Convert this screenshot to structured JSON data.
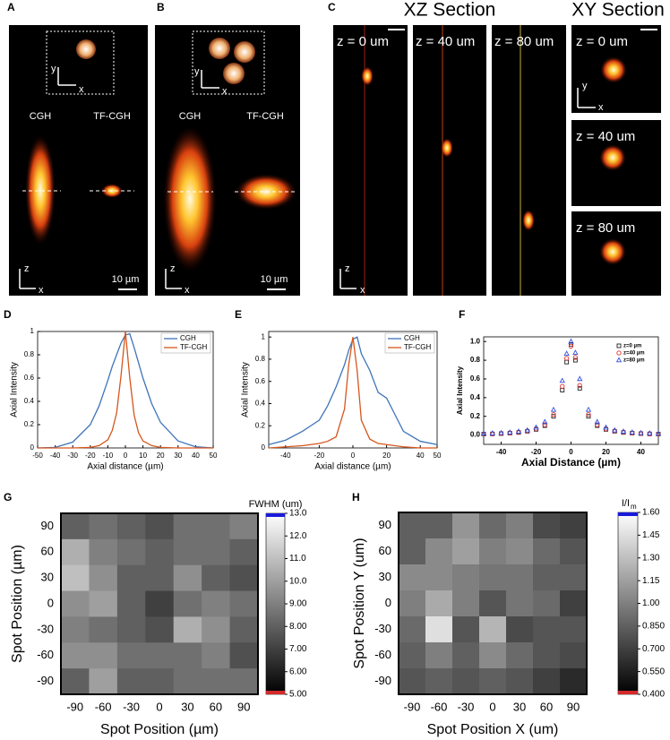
{
  "panels": {
    "A": {
      "label": "A",
      "left": "CGH",
      "right": "TF-CGH",
      "scale": "10 µm",
      "inset_axes": [
        "y",
        "x"
      ],
      "axes": [
        "z",
        "x"
      ]
    },
    "B": {
      "label": "B",
      "left": "CGH",
      "right": "TF-CGH",
      "scale": "10 µm",
      "inset_axes": [
        "y",
        "x"
      ],
      "axes": [
        "z",
        "x"
      ]
    },
    "C": {
      "label": "C",
      "xz_title": "XZ Section",
      "xy_title": "XY Section",
      "xz_labels": [
        "z = 0 um",
        "z = 40 um",
        "z = 80 um"
      ],
      "xy_labels": [
        "z = 0 um",
        "z = 40 um",
        "z = 80 um"
      ],
      "xz_axes": [
        "z",
        "x"
      ],
      "xy_axes": [
        "y",
        "x"
      ]
    }
  },
  "chart_data": [
    {
      "type": "line",
      "label": "D",
      "xlabel": "Axial distance (µm)",
      "ylabel": "Axial Intensity",
      "x": [
        -50,
        -40,
        -30,
        -20,
        -15,
        -10,
        -7.5,
        -5,
        -2.5,
        0,
        2.5,
        5,
        7.5,
        10,
        15,
        20,
        30,
        40,
        50
      ],
      "series": [
        {
          "name": "CGH",
          "color": "#3f74b8",
          "values": [
            0,
            0.005,
            0.05,
            0.2,
            0.36,
            0.58,
            0.7,
            0.8,
            0.9,
            0.97,
            0.98,
            0.86,
            0.73,
            0.6,
            0.38,
            0.22,
            0.06,
            0.01,
            0
          ]
        },
        {
          "name": "TF-CGH",
          "color": "#d6561c",
          "values": [
            0,
            0,
            0,
            0.005,
            0.02,
            0.07,
            0.15,
            0.3,
            0.62,
            1,
            0.6,
            0.28,
            0.13,
            0.06,
            0.02,
            0.005,
            0,
            0,
            0
          ]
        }
      ],
      "xlim": [
        -50,
        50
      ],
      "xticks": [
        -50,
        -40,
        -30,
        -20,
        -10,
        0,
        10,
        20,
        30,
        40,
        50
      ],
      "ylim": [
        0,
        1
      ],
      "yticks": [
        0,
        0.2,
        0.4,
        0.6,
        0.8,
        1
      ]
    },
    {
      "type": "line",
      "label": "E",
      "xlabel": "Axial distance (µm)",
      "ylabel": "Axial Intensity",
      "x": [
        -50,
        -40,
        -30,
        -25,
        -20,
        -15,
        -10,
        -5,
        -2.5,
        0,
        2.5,
        5,
        10,
        15,
        20,
        25,
        30,
        40,
        50
      ],
      "series": [
        {
          "name": "CGH",
          "color": "#3f74b8",
          "values": [
            0.03,
            0.07,
            0.15,
            0.2,
            0.25,
            0.38,
            0.55,
            0.75,
            0.88,
            0.98,
            1,
            0.85,
            0.7,
            0.5,
            0.45,
            0.3,
            0.15,
            0.06,
            0.03
          ]
        },
        {
          "name": "TF-CGH",
          "color": "#d6561c",
          "values": [
            0,
            0.01,
            0.02,
            0.03,
            0.04,
            0.06,
            0.1,
            0.35,
            0.75,
            1,
            0.7,
            0.25,
            0.08,
            0.04,
            0.03,
            0.02,
            0.01,
            0,
            0
          ]
        }
      ],
      "xlim": [
        -50,
        50
      ],
      "xticks": [
        -40,
        -20,
        0,
        20,
        40,
        50
      ],
      "ylim": [
        0,
        1.05
      ],
      "yticks": [
        0,
        0.2,
        0.4,
        0.6,
        0.8,
        1
      ]
    },
    {
      "type": "scatter",
      "label": "F",
      "xlabel": "Axial Distance (µm)",
      "ylabel": "Axial Intensity",
      "x": [
        -50,
        -45,
        -40,
        -35,
        -30,
        -25,
        -20,
        -15,
        -10,
        -5,
        -2.5,
        0,
        2.5,
        5,
        10,
        15,
        20,
        25,
        30,
        35,
        40,
        45,
        50
      ],
      "series": [
        {
          "name": "z=0 µm",
          "color": "#222222",
          "marker": "square",
          "values": [
            0.01,
            0.012,
            0.015,
            0.02,
            0.027,
            0.04,
            0.06,
            0.1,
            0.2,
            0.48,
            0.78,
            0.97,
            0.8,
            0.5,
            0.2,
            0.1,
            0.06,
            0.04,
            0.027,
            0.02,
            0.015,
            0.012,
            0.01
          ]
        },
        {
          "name": "z=40 µm",
          "color": "#e03030",
          "marker": "circle",
          "values": [
            0.01,
            0.013,
            0.016,
            0.021,
            0.03,
            0.042,
            0.065,
            0.11,
            0.22,
            0.52,
            0.82,
            0.95,
            0.83,
            0.53,
            0.22,
            0.11,
            0.065,
            0.042,
            0.03,
            0.021,
            0.016,
            0.013,
            0.01
          ]
        },
        {
          "name": "z=80 µm",
          "color": "#3050e0",
          "marker": "triangle",
          "values": [
            0.015,
            0.018,
            0.022,
            0.028,
            0.037,
            0.05,
            0.08,
            0.14,
            0.27,
            0.58,
            0.87,
            1,
            0.88,
            0.6,
            0.27,
            0.14,
            0.08,
            0.05,
            0.037,
            0.028,
            0.022,
            0.018,
            0.015
          ]
        }
      ],
      "xlim": [
        -50,
        50
      ],
      "xticks": [
        -40,
        -20,
        0,
        20,
        40
      ],
      "ylim": [
        -0.1,
        1.05
      ],
      "yticks": [
        {
          "value": 0,
          "label": "0.0"
        },
        0.2,
        0.4,
        0.6,
        0.8,
        {
          "value": 1,
          "label": "1.0"
        }
      ]
    },
    {
      "type": "heatmap",
      "label": "G",
      "xlabel": "Spot Position (µm)",
      "ylabel": "Spot Position (µm)",
      "x_categories": [
        -90,
        -60,
        -30,
        0,
        30,
        60,
        90
      ],
      "y_categories": [
        90,
        60,
        30,
        0,
        -30,
        -60,
        -90
      ],
      "values": [
        [
          8.0,
          8.5,
          8.0,
          7.5,
          8.5,
          8.5,
          9.0
        ],
        [
          10.5,
          9.0,
          8.5,
          8.0,
          8.5,
          8.5,
          8.0
        ],
        [
          11.0,
          9.5,
          8.0,
          8.0,
          9.5,
          8.0,
          7.5
        ],
        [
          9.5,
          10.0,
          8.0,
          7.0,
          8.5,
          9.0,
          8.5
        ],
        [
          9.0,
          8.5,
          8.0,
          7.5,
          10.5,
          9.5,
          8.0
        ],
        [
          9.5,
          9.5,
          8.5,
          8.5,
          8.5,
          9.0,
          7.5
        ],
        [
          8.0,
          10.0,
          8.0,
          8.0,
          8.5,
          8.5,
          8.5
        ]
      ],
      "colorbar_title": "FWHM (um)",
      "clim": [
        5,
        13
      ],
      "over_color": "#1a1adb",
      "under_color": "#d42a2a",
      "colorbar_ticks": [
        {
          "value": 13,
          "label": "13.0"
        },
        {
          "value": 12,
          "label": "12.0"
        },
        {
          "value": 11,
          "label": "11.0"
        },
        {
          "value": 10,
          "label": "10.0"
        },
        {
          "value": 9,
          "label": "9.00"
        },
        {
          "value": 8,
          "label": "8.00"
        },
        {
          "value": 7,
          "label": "7.00"
        },
        {
          "value": 6,
          "label": "6.00"
        },
        {
          "value": 5,
          "label": "5.00"
        }
      ]
    },
    {
      "type": "heatmap",
      "label": "H",
      "xlabel": "Spot Position X (um)",
      "ylabel": "Spot Position Y (um)",
      "x_categories": [
        -90,
        -60,
        -30,
        0,
        30,
        60,
        90
      ],
      "y_categories": [
        90,
        60,
        30,
        0,
        -30,
        -60,
        -90
      ],
      "values": [
        [
          0.85,
          0.85,
          1.1,
          0.9,
          1.0,
          0.75,
          0.7
        ],
        [
          0.85,
          1.05,
          1.15,
          1.0,
          1.05,
          0.9,
          0.8
        ],
        [
          1.05,
          1.05,
          1.0,
          0.95,
          0.95,
          0.85,
          0.85
        ],
        [
          1.0,
          1.2,
          1.0,
          0.8,
          0.95,
          0.9,
          0.7
        ],
        [
          0.9,
          1.45,
          0.8,
          1.25,
          0.75,
          0.8,
          0.8
        ],
        [
          0.85,
          1.0,
          0.85,
          1.05,
          0.9,
          0.8,
          0.75
        ],
        [
          0.8,
          0.85,
          0.8,
          0.85,
          0.8,
          0.7,
          0.6
        ]
      ],
      "colorbar_title": "I/I",
      "colorbar_title_sub": "m",
      "clim": [
        0.4,
        1.6
      ],
      "over_color": "#1a1adb",
      "under_color": "#d42a2a",
      "colorbar_ticks": [
        {
          "value": 1.6,
          "label": "1.60"
        },
        1.45,
        {
          "value": 1.3,
          "label": "1.30"
        },
        1.15,
        {
          "value": 1,
          "label": "1.00"
        },
        {
          "value": 0.85,
          "label": "0.850"
        },
        {
          "value": 0.7,
          "label": "0.700"
        },
        {
          "value": 0.55,
          "label": "0.550"
        },
        {
          "value": 0.4,
          "label": "0.400"
        }
      ]
    }
  ]
}
